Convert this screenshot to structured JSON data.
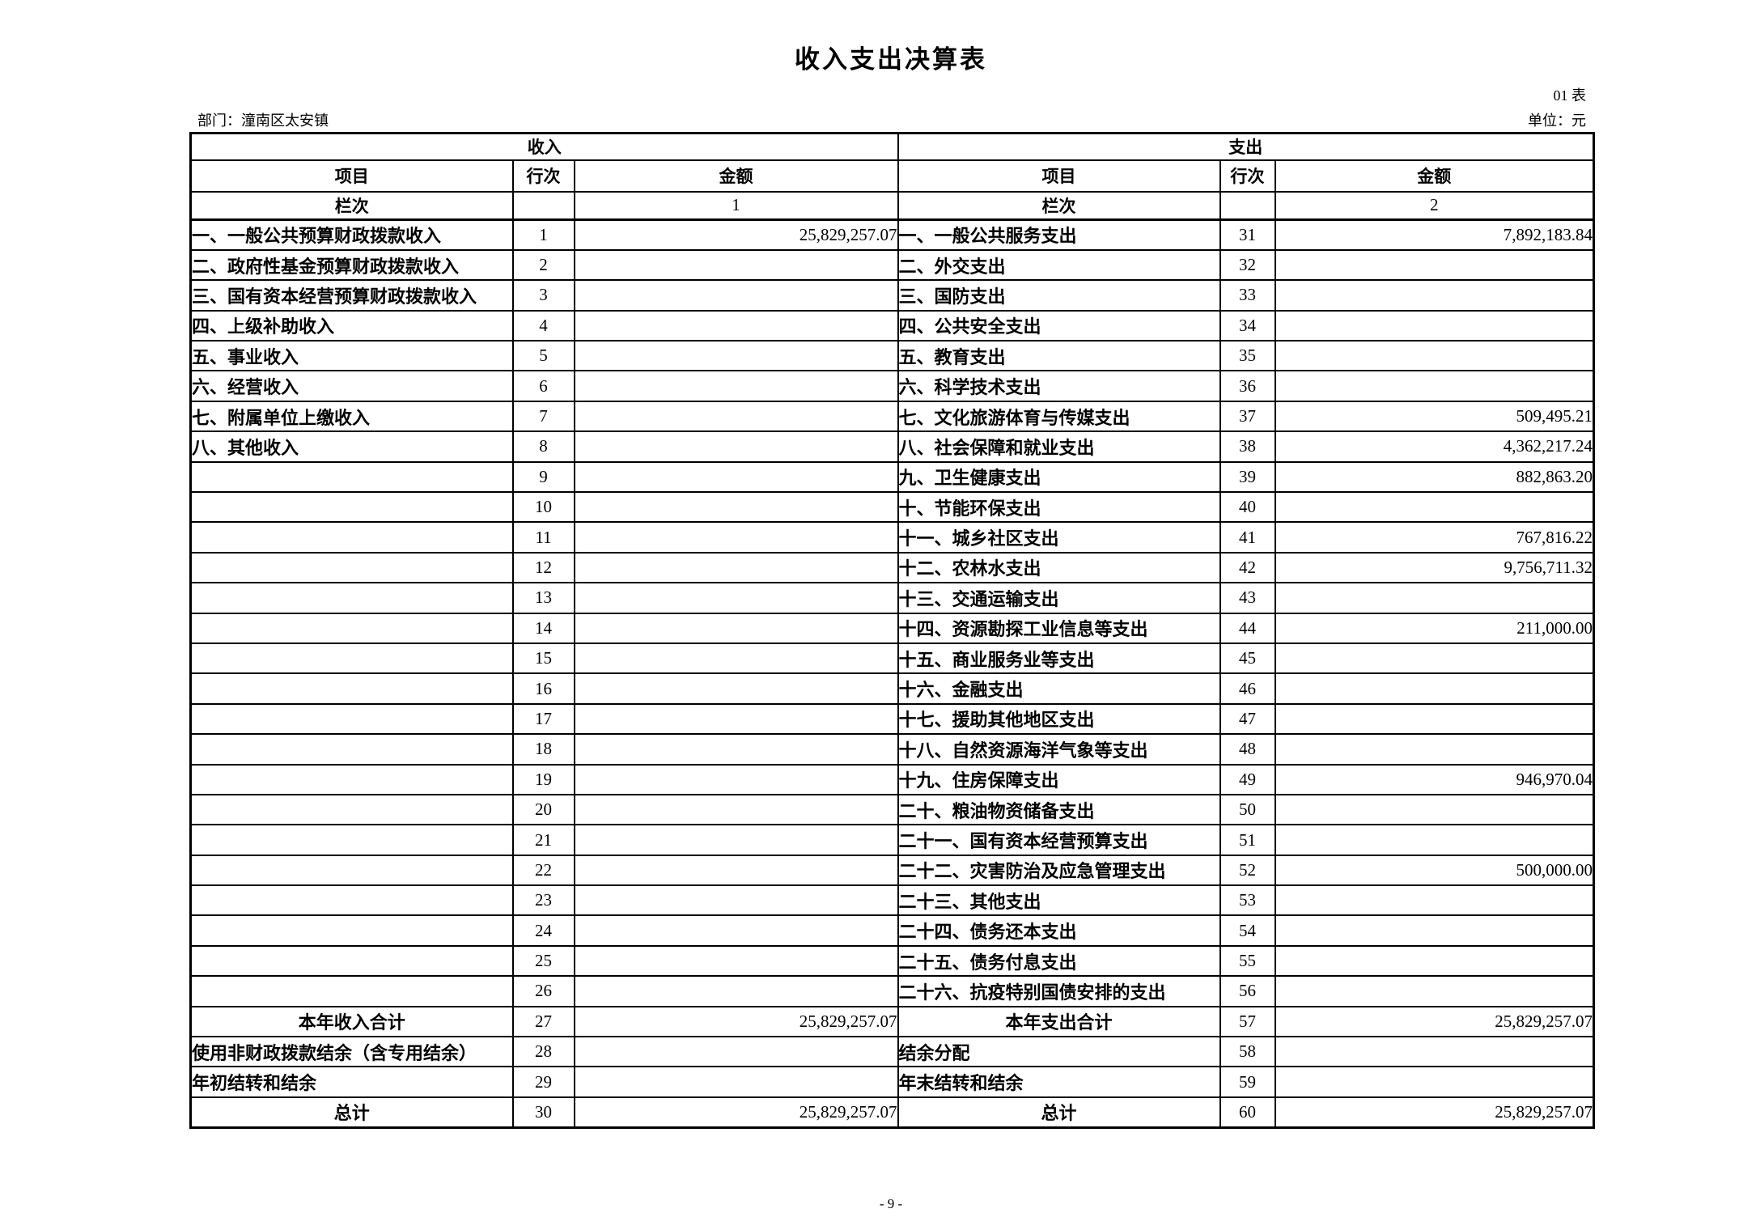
{
  "page": {
    "title": "收入支出决算表",
    "form_number": "01 表",
    "department_label": "部门：潼南区太安镇",
    "unit_label": "单位：元",
    "page_number": "- 9 -"
  },
  "table": {
    "sections": {
      "income": "收入",
      "expense": "支出"
    },
    "columns": {
      "item": "项目",
      "line_no": "行次",
      "amount": "金额"
    },
    "column_index_label": "栏次",
    "income_column_index": "1",
    "expense_column_index": "2",
    "income_rows": [
      {
        "label": "一、一般公共预算财政拨款收入",
        "line": "1",
        "amount": "25,829,257.07"
      },
      {
        "label": "二、政府性基金预算财政拨款收入",
        "line": "2",
        "amount": ""
      },
      {
        "label": "三、国有资本经营预算财政拨款收入",
        "line": "3",
        "amount": ""
      },
      {
        "label": "四、上级补助收入",
        "line": "4",
        "amount": ""
      },
      {
        "label": "五、事业收入",
        "line": "5",
        "amount": ""
      },
      {
        "label": "六、经营收入",
        "line": "6",
        "amount": ""
      },
      {
        "label": "七、附属单位上缴收入",
        "line": "7",
        "amount": ""
      },
      {
        "label": "八、其他收入",
        "line": "8",
        "amount": ""
      },
      {
        "label": "",
        "line": "9",
        "amount": ""
      },
      {
        "label": "",
        "line": "10",
        "amount": ""
      },
      {
        "label": "",
        "line": "11",
        "amount": ""
      },
      {
        "label": "",
        "line": "12",
        "amount": ""
      },
      {
        "label": "",
        "line": "13",
        "amount": ""
      },
      {
        "label": "",
        "line": "14",
        "amount": ""
      },
      {
        "label": "",
        "line": "15",
        "amount": ""
      },
      {
        "label": "",
        "line": "16",
        "amount": ""
      },
      {
        "label": "",
        "line": "17",
        "amount": ""
      },
      {
        "label": "",
        "line": "18",
        "amount": ""
      },
      {
        "label": "",
        "line": "19",
        "amount": ""
      },
      {
        "label": "",
        "line": "20",
        "amount": ""
      },
      {
        "label": "",
        "line": "21",
        "amount": ""
      },
      {
        "label": "",
        "line": "22",
        "amount": ""
      },
      {
        "label": "",
        "line": "23",
        "amount": ""
      },
      {
        "label": "",
        "line": "24",
        "amount": ""
      },
      {
        "label": "",
        "line": "25",
        "amount": ""
      },
      {
        "label": "",
        "line": "26",
        "amount": ""
      },
      {
        "label": "本年收入合计",
        "line": "27",
        "amount": "25,829,257.07",
        "total": true
      },
      {
        "label": "使用非财政拨款结余（含专用结余）",
        "line": "28",
        "amount": ""
      },
      {
        "label": "年初结转和结余",
        "line": "29",
        "amount": ""
      },
      {
        "label": "总计",
        "line": "30",
        "amount": "25,829,257.07",
        "total": true
      }
    ],
    "expense_rows": [
      {
        "label": "一、一般公共服务支出",
        "line": "31",
        "amount": "7,892,183.84"
      },
      {
        "label": "二、外交支出",
        "line": "32",
        "amount": ""
      },
      {
        "label": "三、国防支出",
        "line": "33",
        "amount": ""
      },
      {
        "label": "四、公共安全支出",
        "line": "34",
        "amount": ""
      },
      {
        "label": "五、教育支出",
        "line": "35",
        "amount": ""
      },
      {
        "label": "六、科学技术支出",
        "line": "36",
        "amount": ""
      },
      {
        "label": "七、文化旅游体育与传媒支出",
        "line": "37",
        "amount": "509,495.21"
      },
      {
        "label": "八、社会保障和就业支出",
        "line": "38",
        "amount": "4,362,217.24"
      },
      {
        "label": "九、卫生健康支出",
        "line": "39",
        "amount": "882,863.20"
      },
      {
        "label": "十、节能环保支出",
        "line": "40",
        "amount": ""
      },
      {
        "label": "十一、城乡社区支出",
        "line": "41",
        "amount": "767,816.22"
      },
      {
        "label": "十二、农林水支出",
        "line": "42",
        "amount": "9,756,711.32"
      },
      {
        "label": "十三、交通运输支出",
        "line": "43",
        "amount": ""
      },
      {
        "label": "十四、资源勘探工业信息等支出",
        "line": "44",
        "amount": "211,000.00"
      },
      {
        "label": "十五、商业服务业等支出",
        "line": "45",
        "amount": ""
      },
      {
        "label": "十六、金融支出",
        "line": "46",
        "amount": ""
      },
      {
        "label": "十七、援助其他地区支出",
        "line": "47",
        "amount": ""
      },
      {
        "label": "十八、自然资源海洋气象等支出",
        "line": "48",
        "amount": ""
      },
      {
        "label": "十九、住房保障支出",
        "line": "49",
        "amount": "946,970.04"
      },
      {
        "label": "二十、粮油物资储备支出",
        "line": "50",
        "amount": ""
      },
      {
        "label": "二十一、国有资本经营预算支出",
        "line": "51",
        "amount": ""
      },
      {
        "label": "二十二、灾害防治及应急管理支出",
        "line": "52",
        "amount": "500,000.00"
      },
      {
        "label": "二十三、其他支出",
        "line": "53",
        "amount": ""
      },
      {
        "label": "二十四、债务还本支出",
        "line": "54",
        "amount": ""
      },
      {
        "label": "二十五、债务付息支出",
        "line": "55",
        "amount": ""
      },
      {
        "label": "二十六、抗疫特别国债安排的支出",
        "line": "56",
        "amount": ""
      },
      {
        "label": "本年支出合计",
        "line": "57",
        "amount": "25,829,257.07",
        "total": true
      },
      {
        "label": "结余分配",
        "line": "58",
        "amount": ""
      },
      {
        "label": "年末结转和结余",
        "line": "59",
        "amount": ""
      },
      {
        "label": "总计",
        "line": "60",
        "amount": "25,829,257.07",
        "total": true
      }
    ]
  }
}
